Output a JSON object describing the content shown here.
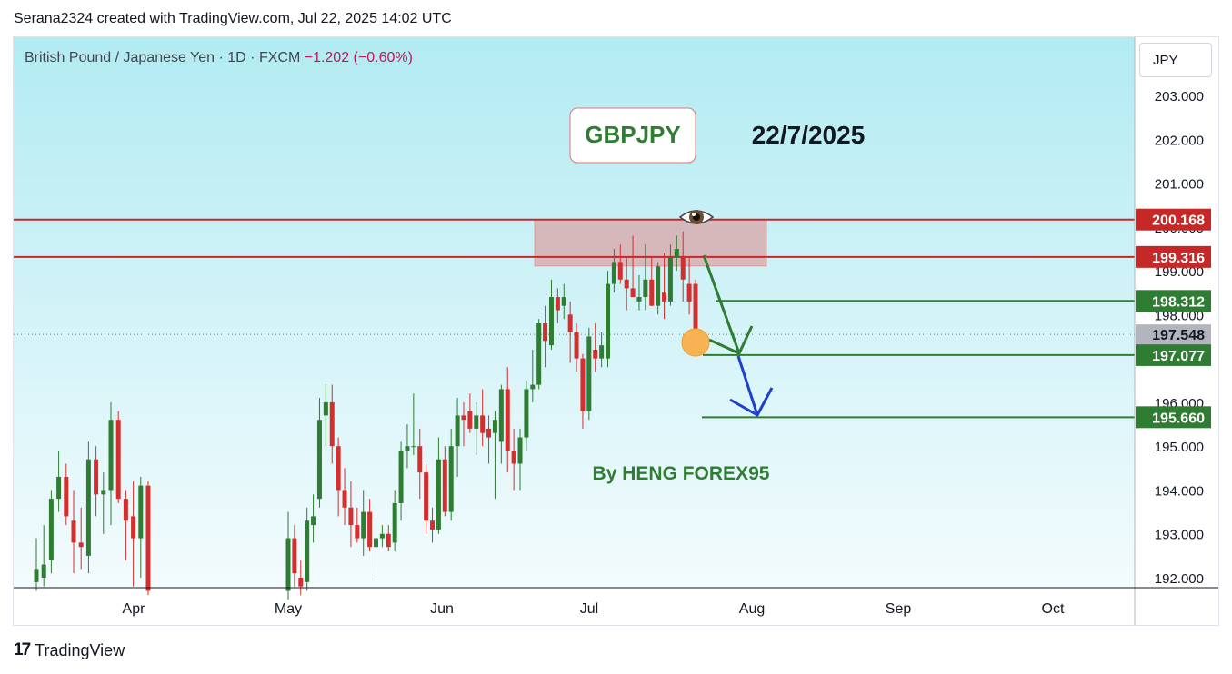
{
  "header": {
    "caption": "Serana2324 created with TradingView.com, Jul 22, 2025 14:02 UTC"
  },
  "symbol": {
    "name": "British Pound / Japanese Yen · 1D · FXCM",
    "change": "−1.202 (−0.60%)"
  },
  "currency": "JPY",
  "footer": {
    "brand": "TradingView"
  },
  "colors": {
    "up": "#2e7d32",
    "down": "#d32f2f",
    "bg_top": "#b2ebf2",
    "bg_bottom": "#f3fbfd",
    "resistance": "#c62828",
    "target": "#2e7d32",
    "arrow_green": "#2e7d32",
    "arrow_blue": "#1e40cc"
  },
  "chart_data": {
    "type": "candlestick",
    "title": "GBPJPY",
    "date_label": "22/7/2025",
    "author": "By HENG FOREX95",
    "y_ticks": [
      192,
      193,
      194,
      195,
      196,
      197,
      198,
      199,
      200,
      201,
      202,
      203
    ],
    "ylim": [
      191.8,
      204.2
    ],
    "x_labels": [
      "Apr",
      "May",
      "Jun",
      "Jul",
      "Aug",
      "Sep",
      "Oct"
    ],
    "resistance_levels": [
      "200.168",
      "199.316"
    ],
    "target_levels": [
      "198.312",
      "197.077",
      "195.660"
    ],
    "last_price": "197.548",
    "candles": [
      {
        "date": "2025-03-24",
        "o": 191.9,
        "h": 192.9,
        "l": 191.7,
        "c": 192.2
      },
      {
        "date": "2025-03-25",
        "o": 192.0,
        "h": 193.2,
        "l": 191.8,
        "c": 192.3
      },
      {
        "date": "2025-03-26",
        "o": 192.4,
        "h": 194.0,
        "l": 192.1,
        "c": 193.8
      },
      {
        "date": "2025-03-27",
        "o": 193.8,
        "h": 194.9,
        "l": 193.5,
        "c": 194.3
      },
      {
        "date": "2025-03-28",
        "o": 194.3,
        "h": 194.6,
        "l": 193.2,
        "c": 193.4
      },
      {
        "date": "2025-03-31",
        "o": 193.3,
        "h": 194.0,
        "l": 192.1,
        "c": 192.8
      },
      {
        "date": "2025-04-01",
        "o": 192.8,
        "h": 193.6,
        "l": 192.2,
        "c": 192.7
      },
      {
        "date": "2025-04-02",
        "o": 192.5,
        "h": 195.1,
        "l": 192.1,
        "c": 194.7
      },
      {
        "date": "2025-04-03",
        "o": 194.7,
        "h": 195.0,
        "l": 193.4,
        "c": 193.9
      },
      {
        "date": "2025-04-04",
        "o": 193.9,
        "h": 194.4,
        "l": 193.0,
        "c": 194.0
      },
      {
        "date": "2025-04-07",
        "o": 194.0,
        "h": 196.0,
        "l": 193.2,
        "c": 195.6
      },
      {
        "date": "2025-04-08",
        "o": 195.6,
        "h": 195.8,
        "l": 193.7,
        "c": 193.8
      },
      {
        "date": "2025-04-09",
        "o": 193.8,
        "h": 194.0,
        "l": 192.4,
        "c": 193.3
      },
      {
        "date": "2025-04-10",
        "o": 193.4,
        "h": 194.2,
        "l": 191.8,
        "c": 192.9
      },
      {
        "date": "2025-04-11",
        "o": 192.9,
        "h": 194.3,
        "l": 192.0,
        "c": 194.1
      },
      {
        "date": "2025-04-14",
        "o": 194.1,
        "h": 194.2,
        "l": 191.6,
        "c": 191.7
      },
      {
        "date": "2025-05-05",
        "o": 191.7,
        "h": 193.5,
        "l": 191.5,
        "c": 192.9
      },
      {
        "date": "2025-05-06",
        "o": 192.9,
        "h": 193.2,
        "l": 191.8,
        "c": 192.1
      },
      {
        "date": "2025-05-07",
        "o": 192.0,
        "h": 192.4,
        "l": 191.6,
        "c": 191.8
      },
      {
        "date": "2025-05-08",
        "o": 191.9,
        "h": 193.6,
        "l": 191.7,
        "c": 193.3
      },
      {
        "date": "2025-05-09",
        "o": 193.2,
        "h": 193.9,
        "l": 192.8,
        "c": 193.4
      },
      {
        "date": "2025-05-12",
        "o": 193.8,
        "h": 196.1,
        "l": 193.6,
        "c": 195.6
      },
      {
        "date": "2025-05-13",
        "o": 195.7,
        "h": 196.4,
        "l": 195.0,
        "c": 196.0
      },
      {
        "date": "2025-05-14",
        "o": 196.0,
        "h": 196.4,
        "l": 194.6,
        "c": 195.0
      },
      {
        "date": "2025-05-15",
        "o": 195.0,
        "h": 195.2,
        "l": 193.4,
        "c": 194.0
      },
      {
        "date": "2025-05-16",
        "o": 194.0,
        "h": 194.5,
        "l": 193.2,
        "c": 193.6
      },
      {
        "date": "2025-05-19",
        "o": 193.6,
        "h": 194.2,
        "l": 192.7,
        "c": 193.2
      },
      {
        "date": "2025-05-20",
        "o": 193.2,
        "h": 193.6,
        "l": 192.8,
        "c": 192.9
      },
      {
        "date": "2025-05-21",
        "o": 192.9,
        "h": 194.0,
        "l": 192.5,
        "c": 193.5
      },
      {
        "date": "2025-05-22",
        "o": 193.5,
        "h": 193.8,
        "l": 192.6,
        "c": 192.7
      },
      {
        "date": "2025-05-23",
        "o": 192.7,
        "h": 193.4,
        "l": 192.0,
        "c": 192.9
      },
      {
        "date": "2025-05-26",
        "o": 192.9,
        "h": 193.2,
        "l": 192.7,
        "c": 193.0
      },
      {
        "date": "2025-05-27",
        "o": 193.0,
        "h": 193.2,
        "l": 192.6,
        "c": 192.7
      },
      {
        "date": "2025-05-28",
        "o": 192.8,
        "h": 194.0,
        "l": 192.6,
        "c": 193.7
      },
      {
        "date": "2025-05-29",
        "o": 193.7,
        "h": 195.1,
        "l": 193.3,
        "c": 194.9
      },
      {
        "date": "2025-05-30",
        "o": 194.9,
        "h": 195.5,
        "l": 194.5,
        "c": 195.0
      },
      {
        "date": "2025-06-02",
        "o": 195.0,
        "h": 196.2,
        "l": 194.8,
        "c": 195.0
      },
      {
        "date": "2025-06-03",
        "o": 195.0,
        "h": 195.4,
        "l": 193.8,
        "c": 194.4
      },
      {
        "date": "2025-06-04",
        "o": 194.4,
        "h": 194.6,
        "l": 193.0,
        "c": 193.3
      },
      {
        "date": "2025-06-05",
        "o": 193.3,
        "h": 193.6,
        "l": 192.8,
        "c": 193.1
      },
      {
        "date": "2025-06-06",
        "o": 193.1,
        "h": 195.2,
        "l": 193.0,
        "c": 194.7
      },
      {
        "date": "2025-06-09",
        "o": 194.7,
        "h": 195.0,
        "l": 193.4,
        "c": 193.5
      },
      {
        "date": "2025-06-10",
        "o": 193.5,
        "h": 195.4,
        "l": 193.3,
        "c": 195.0
      },
      {
        "date": "2025-06-11",
        "o": 195.0,
        "h": 196.1,
        "l": 194.3,
        "c": 195.7
      },
      {
        "date": "2025-06-12",
        "o": 195.7,
        "h": 196.0,
        "l": 195.0,
        "c": 195.6
      },
      {
        "date": "2025-06-13",
        "o": 195.8,
        "h": 196.2,
        "l": 195.3,
        "c": 195.4
      },
      {
        "date": "2025-06-16",
        "o": 195.4,
        "h": 196.0,
        "l": 194.8,
        "c": 195.7
      },
      {
        "date": "2025-06-17",
        "o": 195.7,
        "h": 196.3,
        "l": 195.0,
        "c": 195.3
      },
      {
        "date": "2025-06-18",
        "o": 195.4,
        "h": 195.7,
        "l": 194.6,
        "c": 195.2
      },
      {
        "date": "2025-06-19",
        "o": 195.3,
        "h": 195.8,
        "l": 193.8,
        "c": 195.6
      },
      {
        "date": "2025-06-20",
        "o": 195.1,
        "h": 196.4,
        "l": 194.6,
        "c": 196.3
      },
      {
        "date": "2025-06-23",
        "o": 196.3,
        "h": 196.8,
        "l": 194.4,
        "c": 194.9
      },
      {
        "date": "2025-06-24",
        "o": 194.9,
        "h": 195.4,
        "l": 194.0,
        "c": 194.6
      },
      {
        "date": "2025-06-25",
        "o": 194.6,
        "h": 195.4,
        "l": 194.0,
        "c": 195.2
      },
      {
        "date": "2025-06-26",
        "o": 195.2,
        "h": 196.5,
        "l": 194.9,
        "c": 196.3
      },
      {
        "date": "2025-06-27",
        "o": 196.3,
        "h": 197.2,
        "l": 196.0,
        "c": 196.4
      },
      {
        "date": "2025-06-30",
        "o": 196.4,
        "h": 197.9,
        "l": 196.3,
        "c": 197.8
      },
      {
        "date": "2025-07-01",
        "o": 197.8,
        "h": 198.2,
        "l": 196.8,
        "c": 197.4
      },
      {
        "date": "2025-07-02",
        "o": 197.3,
        "h": 198.8,
        "l": 197.2,
        "c": 198.4
      },
      {
        "date": "2025-07-03",
        "o": 198.4,
        "h": 198.6,
        "l": 197.8,
        "c": 198.1
      },
      {
        "date": "2025-07-04",
        "o": 198.2,
        "h": 198.7,
        "l": 197.9,
        "c": 198.4
      },
      {
        "date": "2025-07-07",
        "o": 198.0,
        "h": 198.3,
        "l": 196.9,
        "c": 197.6
      },
      {
        "date": "2025-07-08",
        "o": 197.6,
        "h": 197.8,
        "l": 196.7,
        "c": 197.0
      },
      {
        "date": "2025-07-09",
        "o": 197.0,
        "h": 197.1,
        "l": 195.4,
        "c": 195.8
      },
      {
        "date": "2025-07-10",
        "o": 195.8,
        "h": 197.7,
        "l": 195.6,
        "c": 197.5
      },
      {
        "date": "2025-07-11",
        "o": 197.2,
        "h": 197.8,
        "l": 196.7,
        "c": 197.0
      },
      {
        "date": "2025-07-14",
        "o": 197.0,
        "h": 197.6,
        "l": 196.8,
        "c": 197.3
      },
      {
        "date": "2025-07-15",
        "o": 197.0,
        "h": 199.0,
        "l": 196.8,
        "c": 198.7
      },
      {
        "date": "2025-07-16",
        "o": 198.7,
        "h": 199.5,
        "l": 198.5,
        "c": 199.2
      },
      {
        "date": "2025-07-17",
        "o": 199.2,
        "h": 199.6,
        "l": 198.7,
        "c": 198.8
      },
      {
        "date": "2025-07-18",
        "o": 198.8,
        "h": 199.3,
        "l": 198.1,
        "c": 198.6
      },
      {
        "date": "2025-07-21",
        "o": 198.6,
        "h": 199.8,
        "l": 198.4,
        "c": 198.4
      },
      {
        "date": "2025-07-22",
        "o": 198.3,
        "h": 198.9,
        "l": 198.1,
        "c": 198.4
      },
      {
        "date": "2025-07-23",
        "o": 198.4,
        "h": 199.6,
        "l": 198.1,
        "c": 198.8
      },
      {
        "date": "2025-07-24",
        "o": 198.8,
        "h": 199.3,
        "l": 198.2,
        "c": 198.2
      },
      {
        "date": "2025-07-25",
        "o": 198.2,
        "h": 199.2,
        "l": 198.0,
        "c": 199.1
      },
      {
        "date": "2025-07-28",
        "o": 198.5,
        "h": 199.4,
        "l": 197.9,
        "c": 198.3
      },
      {
        "date": "2025-07-29",
        "o": 198.3,
        "h": 199.6,
        "l": 198.2,
        "c": 199.3
      },
      {
        "date": "2025-07-30",
        "o": 199.3,
        "h": 199.8,
        "l": 199.0,
        "c": 199.5
      },
      {
        "date": "2025-07-31",
        "o": 199.3,
        "h": 199.9,
        "l": 198.3,
        "c": 198.8
      },
      {
        "date": "2025-08-01",
        "o": 198.7,
        "h": 199.3,
        "l": 198.0,
        "c": 198.3
      },
      {
        "date": "2025-08-04",
        "o": 198.7,
        "h": 198.8,
        "l": 197.4,
        "c": 197.5
      }
    ]
  }
}
